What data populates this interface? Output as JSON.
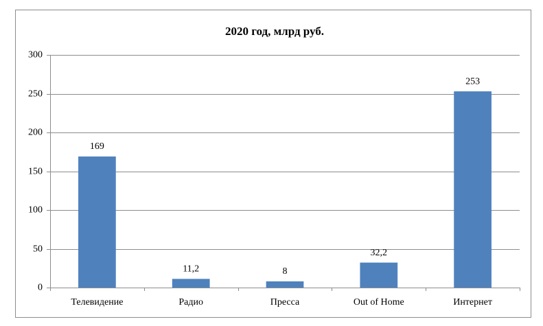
{
  "chart_data": {
    "type": "bar",
    "title": "2020 год,  млрд руб.",
    "categories": [
      "Телевидение",
      "Радио",
      "Пресса",
      "Out of Home",
      "Интернет"
    ],
    "values": [
      169,
      11.2,
      8,
      32.2,
      253
    ],
    "value_labels": [
      "169",
      "11,2",
      "8",
      "32,2",
      "253"
    ],
    "color": "#4f81bd",
    "ylim": [
      0,
      300
    ],
    "yticks": [
      0,
      50,
      100,
      150,
      200,
      250,
      300
    ],
    "grid": true
  }
}
